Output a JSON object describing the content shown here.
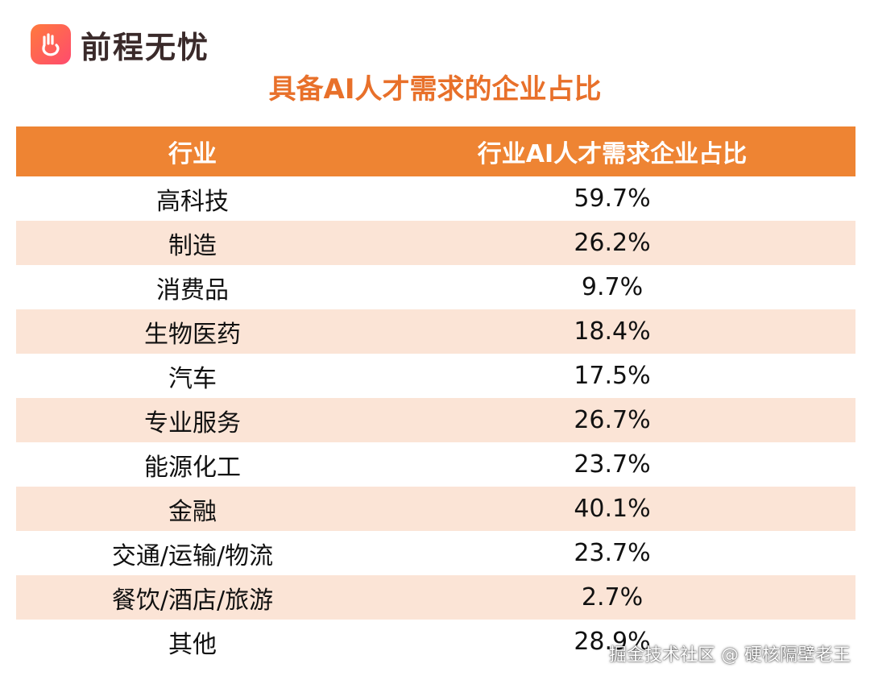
{
  "brand": {
    "name": "前程无忧",
    "logo_icon": "hand-icon",
    "accent_color": "#ee8433"
  },
  "title": "具备AI人才需求的企业占比",
  "chart_data": {
    "type": "table",
    "columns": [
      "行业",
      "行业AI人才需求企业占比"
    ],
    "rows": [
      {
        "industry": "高科技",
        "value": "59.7%"
      },
      {
        "industry": "制造",
        "value": "26.2%"
      },
      {
        "industry": "消费品",
        "value": "9.7%"
      },
      {
        "industry": "生物医药",
        "value": "18.4%"
      },
      {
        "industry": "汽车",
        "value": "17.5%"
      },
      {
        "industry": "专业服务",
        "value": "26.7%"
      },
      {
        "industry": "能源化工",
        "value": "23.7%"
      },
      {
        "industry": "金融",
        "value": "40.1%"
      },
      {
        "industry": "交通/运输/物流",
        "value": "23.7%"
      },
      {
        "industry": "餐饮/酒店/旅游",
        "value": "2.7%"
      },
      {
        "industry": "其他",
        "value": "28.9%"
      }
    ]
  },
  "watermark": "掘金技术社区 @ 硬核隔壁老王"
}
